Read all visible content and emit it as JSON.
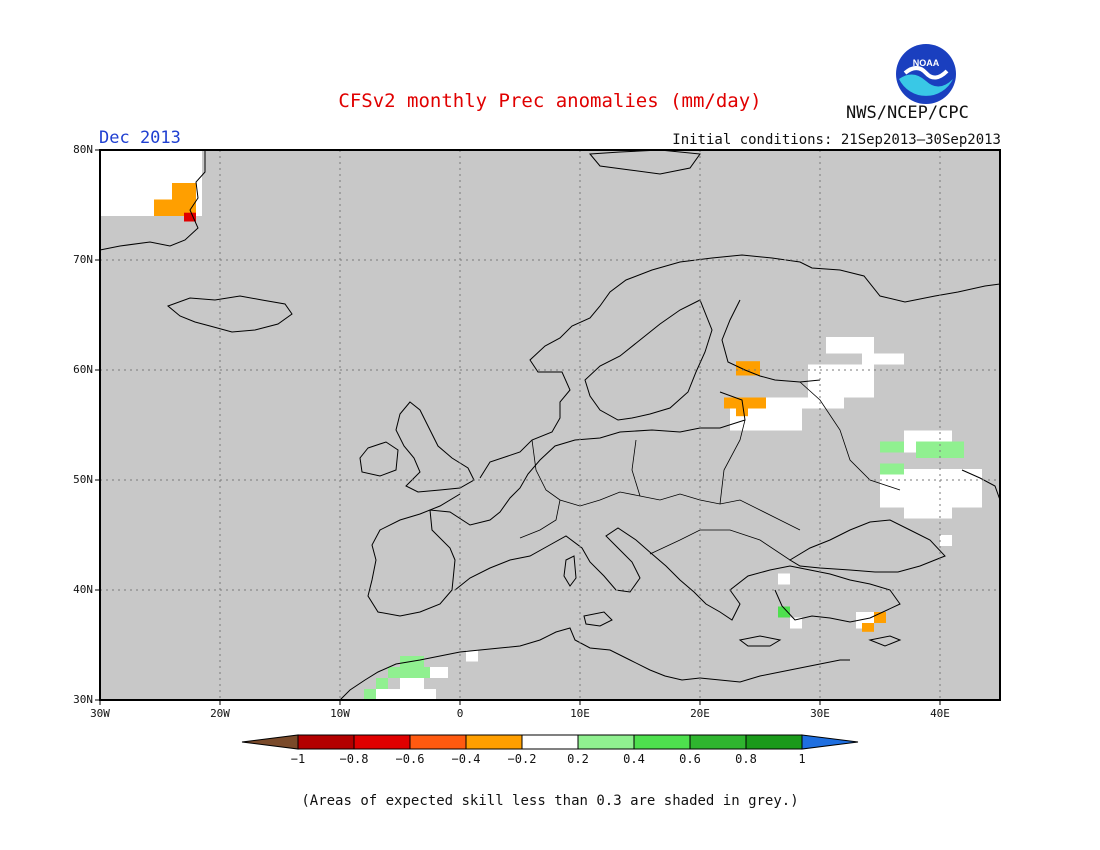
{
  "title": "CFSv2 monthly Prec anomalies (mm/day)",
  "month": "Dec 2013",
  "initial_conditions": "Initial conditions: 21Sep2013–30Sep2013",
  "agency": "NWS/NCEP/CPC",
  "logo_text": "NOAA",
  "note": "(Areas of expected skill less than 0.3 are shaded in grey.)",
  "map": {
    "lon_range": [
      -30,
      45
    ],
    "lat_range": [
      30,
      80
    ],
    "lat_ticks": [
      "30N",
      "40N",
      "50N",
      "60N",
      "70N",
      "80N"
    ],
    "lon_ticks": [
      "30W",
      "20W",
      "10W",
      "0",
      "10E",
      "20E",
      "30E",
      "40E"
    ],
    "background_color": "#c8c8c8",
    "gridlines": true,
    "anomaly_cells": [
      {
        "class": "white",
        "lon": [
          -30,
          -21.5
        ],
        "lat": [
          74,
          80
        ]
      },
      {
        "class": "orange",
        "lon": [
          -25.5,
          -22
        ],
        "lat": [
          74,
          75.5
        ]
      },
      {
        "class": "orange",
        "lon": [
          -24,
          -22
        ],
        "lat": [
          75.5,
          77
        ]
      },
      {
        "class": "red",
        "lon": [
          -23,
          -22
        ],
        "lat": [
          73.5,
          74.3
        ]
      },
      {
        "class": "white",
        "lon": [
          29,
          34.5
        ],
        "lat": [
          57.5,
          60.5
        ]
      },
      {
        "class": "white",
        "lon": [
          22.5,
          28.5
        ],
        "lat": [
          54.5,
          57.5
        ]
      },
      {
        "class": "white",
        "lon": [
          28.5,
          32
        ],
        "lat": [
          56.5,
          57.5
        ]
      },
      {
        "class": "white",
        "lon": [
          30.5,
          34.5
        ],
        "lat": [
          61.5,
          63
        ]
      },
      {
        "class": "white",
        "lon": [
          33.5,
          37
        ],
        "lat": [
          60.5,
          61.5
        ]
      },
      {
        "class": "orange",
        "lon": [
          23,
          25
        ],
        "lat": [
          59.5,
          60.8
        ]
      },
      {
        "class": "orange",
        "lon": [
          22,
          25.5
        ],
        "lat": [
          56.5,
          57.5
        ]
      },
      {
        "class": "orange",
        "lon": [
          23,
          24
        ],
        "lat": [
          55.8,
          56.5
        ]
      },
      {
        "class": "white",
        "lon": [
          37,
          41
        ],
        "lat": [
          52.5,
          54.5
        ]
      },
      {
        "class": "white",
        "lon": [
          35,
          43.5
        ],
        "lat": [
          47.5,
          51
        ]
      },
      {
        "class": "white",
        "lon": [
          37,
          41
        ],
        "lat": [
          46.5,
          47.5
        ]
      },
      {
        "class": "light-green",
        "lon": [
          35,
          37
        ],
        "lat": [
          52.5,
          53.5
        ]
      },
      {
        "class": "light-green",
        "lon": [
          38,
          42
        ],
        "lat": [
          52,
          53.5
        ]
      },
      {
        "class": "light-green",
        "lon": [
          35,
          37
        ],
        "lat": [
          50.5,
          51.5
        ]
      },
      {
        "class": "white",
        "lon": [
          40,
          41
        ],
        "lat": [
          44,
          45
        ]
      },
      {
        "class": "white",
        "lon": [
          33,
          34.5
        ],
        "lat": [
          36.5,
          38
        ]
      },
      {
        "class": "orange",
        "lon": [
          33.5,
          34.5
        ],
        "lat": [
          36.2,
          37
        ]
      },
      {
        "class": "orange",
        "lon": [
          34.5,
          35.5
        ],
        "lat": [
          37,
          38
        ]
      },
      {
        "class": "green",
        "lon": [
          26.5,
          27.5
        ],
        "lat": [
          37.5,
          38.5
        ]
      },
      {
        "class": "white",
        "lon": [
          27.5,
          28.5
        ],
        "lat": [
          36.5,
          37.5
        ]
      },
      {
        "class": "white",
        "lon": [
          26.5,
          27.5
        ],
        "lat": [
          40.5,
          41.5
        ]
      },
      {
        "class": "light-green",
        "lon": [
          -5,
          -3
        ],
        "lat": [
          33,
          34
        ]
      },
      {
        "class": "light-green",
        "lon": [
          -6,
          -2.5
        ],
        "lat": [
          32,
          33
        ]
      },
      {
        "class": "white",
        "lon": [
          -2.5,
          -1
        ],
        "lat": [
          32,
          33
        ]
      },
      {
        "class": "light-green",
        "lon": [
          -7,
          -6
        ],
        "lat": [
          31,
          32
        ]
      },
      {
        "class": "light-green",
        "lon": [
          -8,
          -7
        ],
        "lat": [
          30,
          31
        ]
      },
      {
        "class": "white",
        "lon": [
          -7,
          -2
        ],
        "lat": [
          30,
          31
        ]
      },
      {
        "class": "white",
        "lon": [
          -5,
          -3
        ],
        "lat": [
          31,
          32
        ]
      },
      {
        "class": "white",
        "lon": [
          0.5,
          1.5
        ],
        "lat": [
          33.5,
          34.5
        ]
      }
    ]
  },
  "colorbar": {
    "labels": [
      "−1",
      "−0.8",
      "−0.6",
      "−0.4",
      "−0.2",
      "0.2",
      "0.4",
      "0.6",
      "0.8",
      "1"
    ],
    "colors": [
      "#7a4a2a",
      "#b30000",
      "#e00000",
      "#ff5a10",
      "#ff9f00",
      "#ffffff",
      "#90f090",
      "#4ee04e",
      "#2fb52f",
      "#1a9a1a",
      "#1f6fe0"
    ]
  },
  "anomaly_colors": {
    "white": "#ffffff",
    "orange": "#ff9f00",
    "red": "#e00000",
    "light-green": "#90f090",
    "green": "#4ee04e"
  }
}
